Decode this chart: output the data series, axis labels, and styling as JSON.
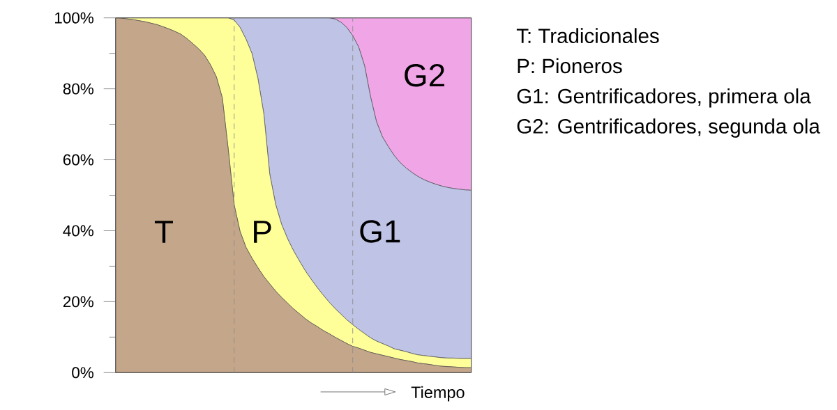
{
  "chart_data": {
    "type": "area",
    "stacked": true,
    "categories": [
      null,
      null,
      null,
      null,
      null,
      null,
      null,
      null,
      null,
      null,
      null,
      null,
      null,
      null,
      null,
      null,
      null,
      null,
      null,
      null,
      null,
      null,
      null,
      null,
      null,
      null,
      null,
      null,
      null,
      null,
      null,
      null,
      null,
      null,
      null,
      null,
      null,
      null,
      null,
      null,
      null,
      null,
      null,
      null,
      null,
      null,
      null,
      null,
      null,
      null,
      null,
      null,
      null,
      null,
      null,
      null,
      null,
      null,
      null,
      null,
      null
    ],
    "series": [
      {
        "name": "T",
        "color": "#c4a68a",
        "values": [
          100,
          99.9,
          99.7,
          99.5,
          99.2,
          98.9,
          98.5,
          98.1,
          97.5,
          96.9,
          96.2,
          95.4,
          94.2,
          92.8,
          91.3,
          89.5,
          86.8,
          83.4,
          77.5,
          63,
          47.3,
          39.8,
          35.3,
          32.3,
          29.6,
          27.1,
          25,
          23,
          21.2,
          19.6,
          18,
          16.6,
          15.2,
          14,
          13,
          11.9,
          11,
          10,
          9.1,
          8.2,
          7.4,
          6.9,
          6.3,
          5.7,
          5.3,
          4.9,
          4.5,
          4.1,
          3.7,
          3.4,
          3.1,
          2.7,
          2.5,
          2.3,
          2,
          1.8,
          1.7,
          1.6,
          1.5,
          1.4,
          1.4
        ]
      },
      {
        "name": "P",
        "color": "#ffff99",
        "values": [
          0,
          0.1,
          0.3,
          0.5,
          0.8,
          1.1,
          1.5,
          1.9,
          2.5,
          3.1,
          3.8,
          4.6,
          5.8,
          7.2,
          8.7,
          10.5,
          13.2,
          16.6,
          22.5,
          37,
          52.1,
          57.5,
          58.7,
          57.7,
          53.4,
          45.9,
          31,
          24.4,
          20.6,
          18.2,
          16.4,
          14.9,
          13.5,
          12.3,
          11,
          10,
          8.9,
          8.1,
          7.4,
          6.7,
          6.1,
          5.3,
          4.7,
          4.1,
          3.6,
          3.3,
          3,
          2.6,
          2.6,
          2.5,
          2.3,
          2.3,
          2.3,
          2.3,
          2.4,
          2.4,
          2.4,
          2.5,
          2.5,
          2.6,
          2.6
        ]
      },
      {
        "name": "G1",
        "color": "#bfc3e6",
        "values": [
          0,
          0,
          0,
          0,
          0,
          0,
          0,
          0,
          0,
          0,
          0,
          0,
          0,
          0,
          0,
          0,
          0,
          0,
          0,
          0,
          0.6,
          2.7,
          6,
          10,
          17,
          27,
          44,
          52.6,
          58.2,
          62.2,
          65.6,
          68.5,
          71.3,
          73.7,
          76,
          78.1,
          80.1,
          81.6,
          82.3,
          82.4,
          81.5,
          79.6,
          75.5,
          68,
          61.9,
          58.3,
          56.2,
          54.5,
          52.9,
          51.8,
          51,
          50.3,
          49.6,
          49.1,
          48.7,
          48.4,
          48.1,
          47.8,
          47.7,
          47.5,
          47.4
        ]
      },
      {
        "name": "G2",
        "color": "#f0a5e7",
        "values": [
          0,
          0,
          0,
          0,
          0,
          0,
          0,
          0,
          0,
          0,
          0,
          0,
          0,
          0,
          0,
          0,
          0,
          0,
          0,
          0,
          0,
          0,
          0,
          0,
          0,
          0,
          0,
          0,
          0,
          0,
          0,
          0,
          0,
          0,
          0,
          0,
          0,
          0.3,
          1.2,
          2.7,
          5,
          8.2,
          13.5,
          22.2,
          29.2,
          33.5,
          36.3,
          38.8,
          40.8,
          42.3,
          43.6,
          44.7,
          45.6,
          46.3,
          46.9,
          47.4,
          47.8,
          48.1,
          48.3,
          48.5,
          48.6
        ]
      }
    ],
    "ylim": [
      0,
      100
    ],
    "yticks": [
      {
        "value": 0,
        "label": "0%"
      },
      {
        "value": 10,
        "label": null
      },
      {
        "value": 20,
        "label": "20%"
      },
      {
        "value": 30,
        "label": null
      },
      {
        "value": 40,
        "label": "40%"
      },
      {
        "value": 50,
        "label": null
      },
      {
        "value": 60,
        "label": "60%"
      },
      {
        "value": 70,
        "label": null
      },
      {
        "value": 80,
        "label": "80%"
      },
      {
        "value": 90,
        "label": null
      },
      {
        "value": 100,
        "label": "100%"
      }
    ],
    "xlabel": "Tiempo",
    "annotations": [
      "T: Tradicionales",
      "P: Pioneros",
      "G1: Gentrificadores, primera ola",
      "G2: Gentrificadores, segunda ola"
    ]
  }
}
